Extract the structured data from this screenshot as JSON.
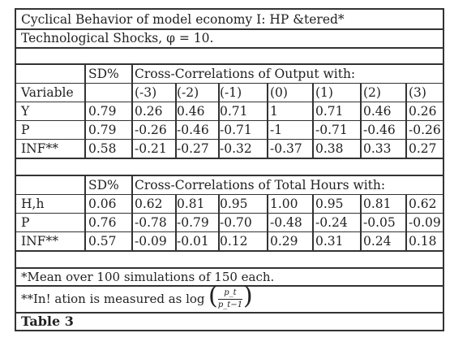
{
  "caption": {
    "line1": "Cyclical Behavior of model economy I: HP &tered*",
    "line2": "Technological Shocks, φ = 10."
  },
  "table1": {
    "sd_header": "SD%",
    "group_header": "Cross-Correlations of Output with:",
    "variable_header": "Variable",
    "lags": [
      "(-3)",
      "(-2)",
      "(-1)",
      "(0)",
      "(1)",
      "(2)",
      "(3)"
    ],
    "rows": [
      {
        "label": "Y",
        "sd": "0.79",
        "values": [
          "0.26",
          "0.46",
          "0.71",
          "1",
          "0.71",
          "0.46",
          "0.26"
        ]
      },
      {
        "label": "P",
        "sd": "0.79",
        "values": [
          "-0.26",
          "-0.46",
          "-0.71",
          "-1",
          "-0.71",
          "-0.46",
          "-0.26"
        ]
      },
      {
        "label": "INF**",
        "sd": "0.58",
        "values": [
          "-0.21",
          "-0.27",
          "-0.32",
          "-0.37",
          "0.38",
          "0.33",
          "0.27"
        ]
      }
    ]
  },
  "table2": {
    "sd_header": "SD%",
    "group_header": "Cross-Correlations of Total Hours with:",
    "rows": [
      {
        "label": "H,h",
        "sd": "0.06",
        "values": [
          "0.62",
          "0.81",
          "0.95",
          "1.00",
          "0.95",
          "0.81",
          "0.62"
        ]
      },
      {
        "label": "P",
        "sd": "0.76",
        "values": [
          "-0.78",
          "-0.79",
          "-0.70",
          "-0.48",
          "-0.24",
          "-0.05",
          "-0.09"
        ]
      },
      {
        "label": "INF**",
        "sd": "0.57",
        "values": [
          "-0.09",
          "-0.01",
          "0.12",
          "0.29",
          "0.31",
          "0.24",
          "0.18"
        ]
      }
    ]
  },
  "notes": {
    "note1": "*Mean over 100 simulations of 150 each.",
    "note2_prefix": "**In! ation is measured as log",
    "note2_num": "p_t",
    "note2_den": "p_t−1"
  },
  "table_label": "Table 3"
}
